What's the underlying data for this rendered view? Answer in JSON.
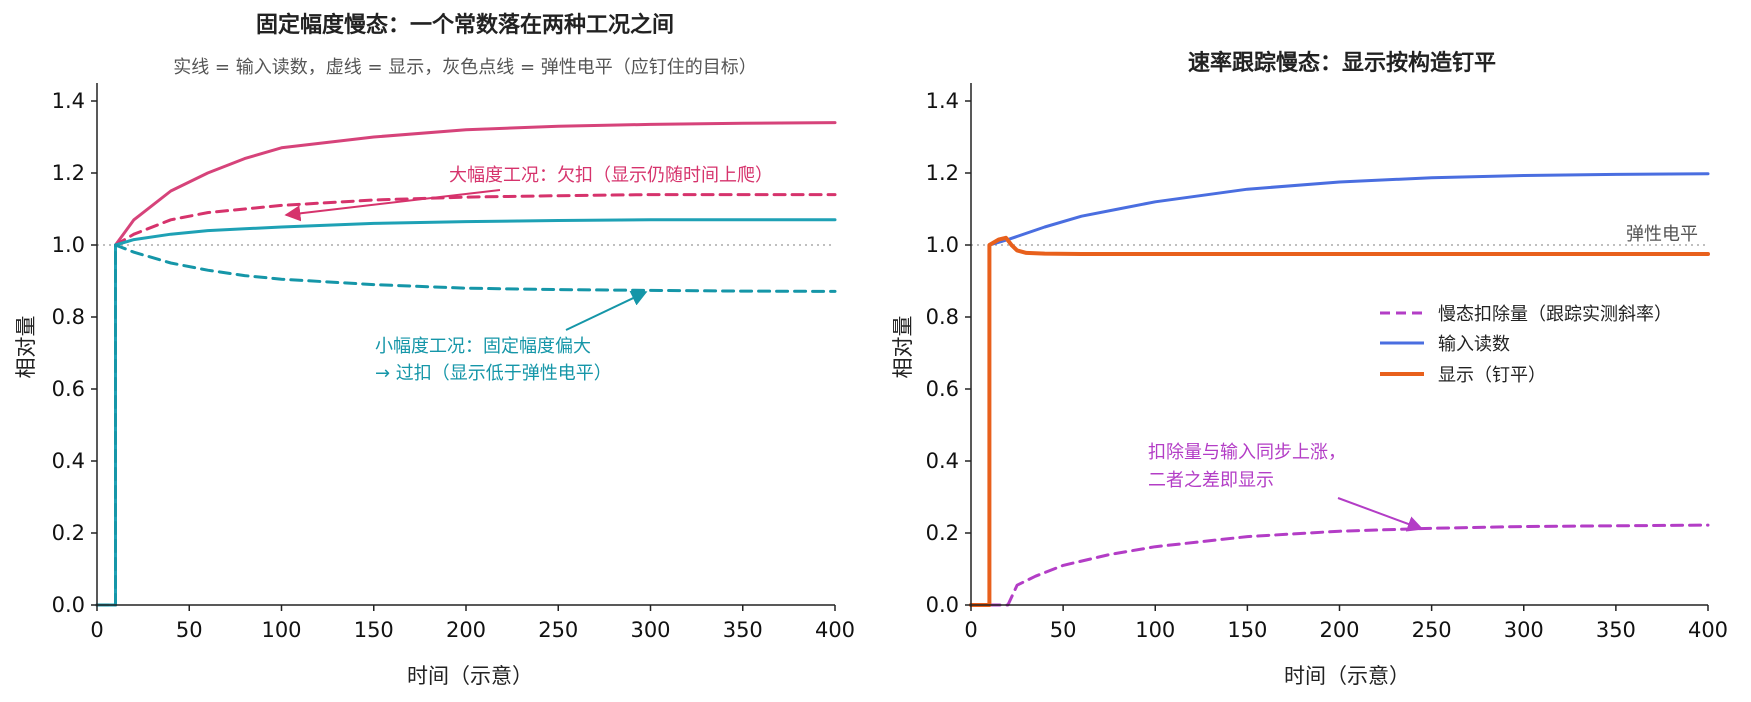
{
  "chart_data": [
    {
      "type": "line",
      "title": "固定幅度慢态：一个常数落在两种工况之间",
      "subtitle": "实线 = 输入读数，虚线 = 显示，灰色点线 = 弹性电平（应钉住的目标）",
      "xlabel": "时间（示意）",
      "ylabel": "相对量",
      "xlim": [
        0,
        400
      ],
      "ylim": [
        0,
        1.45
      ],
      "xticks": [
        0,
        50,
        100,
        150,
        200,
        250,
        300,
        350,
        400
      ],
      "yticks": [
        "0.0",
        "0.2",
        "0.4",
        "0.6",
        "0.8",
        "1.0",
        "1.2",
        "1.4"
      ],
      "reference_line": {
        "y": 1.0,
        "style": "dotted",
        "color": "#aaaaaa"
      },
      "series": [
        {
          "color": "#d6437a",
          "style": "solid",
          "x": [
            0,
            10,
            10,
            20,
            40,
            60,
            80,
            100,
            150,
            200,
            250,
            300,
            350,
            400
          ],
          "y": [
            0,
            0,
            1.0,
            1.07,
            1.15,
            1.2,
            1.24,
            1.27,
            1.3,
            1.32,
            1.33,
            1.335,
            1.338,
            1.34
          ]
        },
        {
          "color": "#d6336c",
          "style": "dashed",
          "x": [
            0,
            10,
            10,
            20,
            40,
            60,
            80,
            100,
            150,
            200,
            250,
            300,
            350,
            400
          ],
          "y": [
            0,
            0,
            1.0,
            1.03,
            1.07,
            1.09,
            1.1,
            1.11,
            1.125,
            1.133,
            1.137,
            1.14,
            1.14,
            1.14
          ]
        },
        {
          "color": "#1ea1b5",
          "style": "solid",
          "x": [
            0,
            10,
            10,
            20,
            40,
            60,
            80,
            100,
            150,
            200,
            250,
            300,
            350,
            400
          ],
          "y": [
            0,
            0,
            1.0,
            1.015,
            1.03,
            1.04,
            1.045,
            1.05,
            1.06,
            1.065,
            1.068,
            1.07,
            1.07,
            1.07
          ]
        },
        {
          "color": "#1596a8",
          "style": "dashed",
          "x": [
            0,
            10,
            10,
            20,
            40,
            60,
            80,
            100,
            150,
            200,
            250,
            300,
            350,
            400
          ],
          "y": [
            0,
            0,
            1.0,
            0.98,
            0.95,
            0.93,
            0.915,
            0.905,
            0.89,
            0.88,
            0.876,
            0.874,
            0.872,
            0.871
          ]
        }
      ],
      "annotations": [
        {
          "text": "大幅度工况：欠扣（显示仍随时间上爬）",
          "color": "#d6336c",
          "text_x": 190,
          "text_y": 1.2,
          "arrow_from": [
            218,
            1.155
          ],
          "arrow_to": [
            105,
            1.09
          ]
        },
        {
          "text": "小幅度工况：固定幅度偏大",
          "color": "#1596a8",
          "text_x": 150,
          "text_y": 0.75
        },
        {
          "text": "→ 过扣（显示低于弹性电平）",
          "color": "#1596a8",
          "text_x": 150,
          "text_y": 0.675,
          "arrow_from": [
            256,
            0.78
          ],
          "arrow_to": [
            297,
            0.88
          ]
        }
      ]
    },
    {
      "type": "line",
      "title": "速率跟踪慢态：显示按构造钉平",
      "xlabel": "时间（示意）",
      "ylabel": "相对量",
      "xlim": [
        0,
        400
      ],
      "ylim": [
        0,
        1.45
      ],
      "xticks": [
        0,
        50,
        100,
        150,
        200,
        250,
        300,
        350,
        400
      ],
      "yticks": [
        "0.0",
        "0.2",
        "0.4",
        "0.6",
        "0.8",
        "1.0",
        "1.2",
        "1.4"
      ],
      "reference_line": {
        "y": 1.0,
        "style": "dotted",
        "color": "#aaaaaa",
        "label": "弹性电平"
      },
      "legend_position": "center-right",
      "series": [
        {
          "name": "慢态扣除量（跟踪实测斜率）",
          "color": "#b33dc6",
          "style": "dashed",
          "x": [
            0,
            20,
            25,
            35,
            50,
            75,
            100,
            150,
            200,
            250,
            300,
            350,
            400
          ],
          "y": [
            0,
            0,
            0.055,
            0.08,
            0.11,
            0.14,
            0.162,
            0.19,
            0.205,
            0.213,
            0.218,
            0.22,
            0.222
          ]
        },
        {
          "name": "输入读数",
          "color": "#4a6ee0",
          "style": "solid",
          "x": [
            10,
            20,
            40,
            60,
            80,
            100,
            150,
            200,
            250,
            300,
            350,
            400
          ],
          "y": [
            1.0,
            1.015,
            1.05,
            1.08,
            1.1,
            1.12,
            1.155,
            1.175,
            1.187,
            1.193,
            1.196,
            1.198
          ]
        },
        {
          "name": "显示（钉平）",
          "color": "#e8601c",
          "style": "solid",
          "x": [
            0,
            10,
            10,
            15,
            19,
            22,
            25,
            30,
            40,
            60,
            100,
            200,
            300,
            400
          ],
          "y": [
            0,
            0,
            1.0,
            1.015,
            1.02,
            1.0,
            0.985,
            0.978,
            0.976,
            0.975,
            0.975,
            0.975,
            0.975,
            0.975
          ]
        }
      ],
      "annotations": [
        {
          "text": "扣除量与输入同步上涨，",
          "color": "#b33dc6",
          "text_x": 96,
          "text_y": 0.41
        },
        {
          "text": "二者之差即显示",
          "color": "#b33dc6",
          "text_x": 96,
          "text_y": 0.34,
          "arrow_from": [
            200,
            0.3
          ],
          "arrow_to": [
            245,
            0.215
          ]
        }
      ]
    }
  ]
}
